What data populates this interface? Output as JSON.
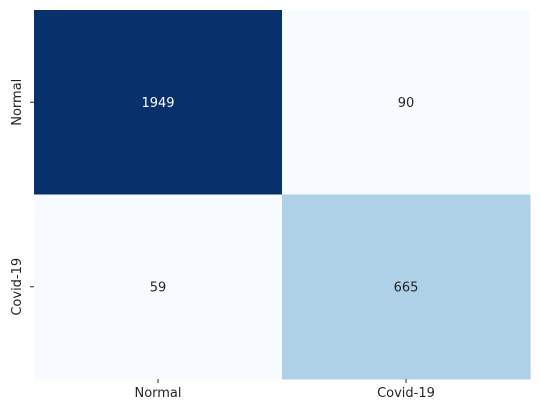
{
  "chart_data": {
    "type": "heatmap",
    "title": "",
    "xlabel": "",
    "ylabel": "",
    "x_categories": [
      "Normal",
      "Covid-19"
    ],
    "y_categories": [
      "Normal",
      "Covid-19"
    ],
    "values": [
      [
        1949,
        90
      ],
      [
        59,
        665
      ]
    ],
    "cell_colors": [
      [
        "#08306b",
        "#f7fbff"
      ],
      [
        "#f7fbff",
        "#afd1e7"
      ]
    ],
    "text_colors": [
      [
        "#ffffff",
        "#262626"
      ],
      [
        "#262626",
        "#262626"
      ]
    ],
    "colormap": "Blues",
    "colorbar": false
  }
}
